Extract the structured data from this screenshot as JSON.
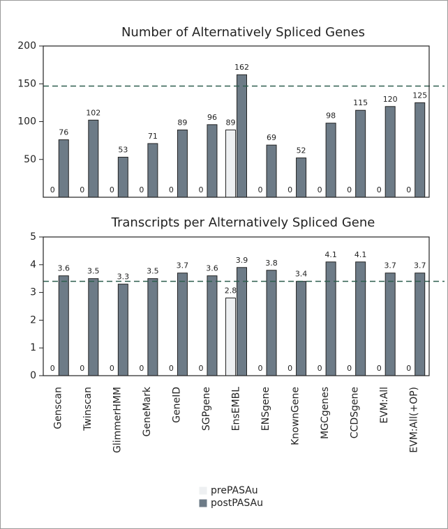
{
  "chart_data": [
    {
      "type": "bar",
      "title": "Number of Alternatively Spliced Genes",
      "series": [
        {
          "color": "#eef0f2",
          "values": [
            0,
            0,
            0,
            0,
            0,
            0,
            89,
            0,
            0,
            0,
            0,
            0,
            0
          ]
        },
        {
          "color": "#6d7b87",
          "values": [
            76,
            102,
            53,
            71,
            89,
            96,
            162,
            69,
            52,
            98,
            115,
            120,
            125
          ]
        }
      ],
      "ylim": [
        0,
        200
      ],
      "yticks": [
        50,
        100,
        150,
        200
      ],
      "reference_line": 147,
      "reference_color": "#2e5e4e"
    },
    {
      "type": "bar",
      "title": "Transcripts per Alternatively Spliced Gene",
      "categories": [
        "Genscan",
        "Twinscan",
        "GlimmerHMM",
        "GeneMark",
        "GeneID",
        "SGPgene",
        "EnsEMBL",
        "ENSgene",
        "KnownGene",
        "MGCgenes",
        "CCDSgene",
        "EVM:All",
        "EVM:All(+OP)"
      ],
      "series": [
        {
          "name": "prePASAu",
          "color": "#eef0f2",
          "values": [
            0,
            0,
            0,
            0,
            0,
            0,
            2.8,
            0,
            0,
            0,
            0,
            0,
            0
          ]
        },
        {
          "name": "postPASAu",
          "color": "#6d7b87",
          "values": [
            3.6,
            3.5,
            3.3,
            3.5,
            3.7,
            3.6,
            3.9,
            3.8,
            3.4,
            4.1,
            4.1,
            3.7,
            3.7
          ]
        }
      ],
      "ylim": [
        0,
        5
      ],
      "yticks": [
        0,
        1,
        2,
        3,
        4,
        5
      ],
      "reference_line": 3.4,
      "reference_color": "#2e5e4e",
      "legend": "bottom"
    }
  ]
}
